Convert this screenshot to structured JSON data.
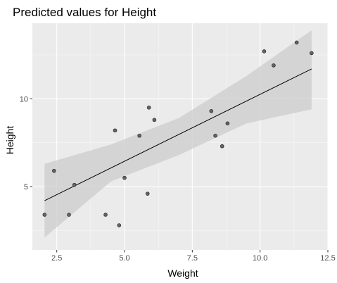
{
  "chart_data": {
    "type": "scatter",
    "title": "Predicted values for Height",
    "xlabel": "Weight",
    "ylabel": "Height",
    "xlim": [
      1.6,
      12.5
    ],
    "ylim": [
      1.4,
      14.3
    ],
    "x_ticks": [
      2.5,
      5.0,
      7.5,
      10.0,
      12.5
    ],
    "x_tick_labels": [
      "2.5",
      "5.0",
      "7.5",
      "10.0",
      "12.5"
    ],
    "y_ticks": [
      5,
      10
    ],
    "y_tick_labels": [
      "5",
      "10"
    ],
    "grid": true,
    "points": [
      {
        "x": 2.05,
        "y": 3.4
      },
      {
        "x": 2.4,
        "y": 5.9
      },
      {
        "x": 2.95,
        "y": 3.4
      },
      {
        "x": 3.15,
        "y": 5.1
      },
      {
        "x": 4.3,
        "y": 3.4
      },
      {
        "x": 4.65,
        "y": 8.2
      },
      {
        "x": 4.8,
        "y": 2.8
      },
      {
        "x": 5.0,
        "y": 5.5
      },
      {
        "x": 5.55,
        "y": 7.9
      },
      {
        "x": 5.85,
        "y": 4.6
      },
      {
        "x": 5.9,
        "y": 9.5
      },
      {
        "x": 6.1,
        "y": 8.8
      },
      {
        "x": 8.2,
        "y": 9.3
      },
      {
        "x": 8.35,
        "y": 7.9
      },
      {
        "x": 8.6,
        "y": 7.3
      },
      {
        "x": 8.8,
        "y": 8.6
      },
      {
        "x": 10.15,
        "y": 12.7
      },
      {
        "x": 10.5,
        "y": 11.9
      },
      {
        "x": 11.35,
        "y": 13.2
      },
      {
        "x": 11.9,
        "y": 12.6
      }
    ],
    "fit_line": {
      "x": [
        2.05,
        11.9
      ],
      "y": [
        4.2,
        11.7
      ]
    },
    "confidence_band": {
      "x": [
        2.05,
        4.5,
        7.0,
        9.5,
        11.9
      ],
      "lower": [
        2.1,
        5.3,
        6.8,
        8.6,
        9.4
      ],
      "upper": [
        6.3,
        7.4,
        8.9,
        11.3,
        13.9
      ]
    },
    "colors": {
      "panel": "#ebebeb",
      "grid_major": "#ffffff",
      "grid_minor": "#f5f5f5",
      "band": "#cccccc",
      "line": "#000000",
      "point_fill": "#666666",
      "point_stroke": "#2b2b2b",
      "tick_text": "#4d4d4d"
    }
  }
}
